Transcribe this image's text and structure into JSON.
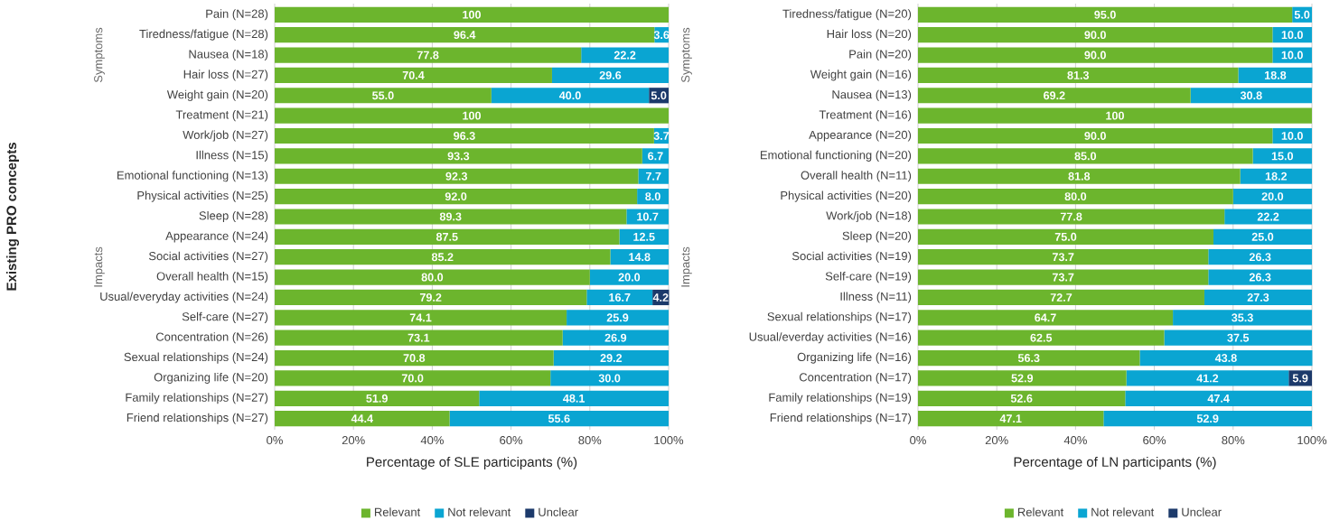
{
  "chart_data": [
    {
      "type": "bar",
      "orientation": "horizontal",
      "stacked": true,
      "xlabel": "Percentage of SLE participants (%)",
      "ylabel": "Existing PRO concepts",
      "annotations": [
        "Symptoms",
        "Impacts"
      ],
      "categories": [
        "Pain (N=28)",
        "Tiredness/fatigue (N=28)",
        "Nausea (N=18)",
        "Hair loss (N=27)",
        "Weight gain (N=20)",
        "Treatment (N=21)",
        "Work/job (N=27)",
        "Illness (N=15)",
        "Emotional functioning (N=13)",
        "Physical activities (N=25)",
        "Sleep (N=28)",
        "Appearance (N=24)",
        "Social activities (N=27)",
        "Overall health (N=15)",
        "Usual/everyday activities (N=24)",
        "Self-care (N=27)",
        "Concentration (N=26)",
        "Sexual relationships (N=24)",
        "Organizing life (N=20)",
        "Family relationships (N=27)",
        "Friend relationships (N=27)"
      ],
      "series": [
        {
          "name": "Relevant",
          "color": "#6cb52d",
          "values": [
            100,
            96.4,
            77.8,
            70.4,
            55.0,
            100,
            96.3,
            93.3,
            92.3,
            92.0,
            89.3,
            87.5,
            85.2,
            80.0,
            79.2,
            74.1,
            73.1,
            70.8,
            70.0,
            51.9,
            44.4
          ],
          "value_labels": [
            "100",
            "96.4",
            "77.8",
            "70.4",
            "55.0",
            "100",
            "96.3",
            "93.3",
            "92.3",
            "92.0",
            "89.3",
            "87.5",
            "85.2",
            "80.0",
            "79.2",
            "74.1",
            "73.1",
            "70.8",
            "70.0",
            "51.9",
            "44.4"
          ]
        },
        {
          "name": "Not relevant",
          "color": "#0aa5d2",
          "values": [
            null,
            3.6,
            22.2,
            29.6,
            40.0,
            null,
            3.7,
            6.7,
            7.7,
            8.0,
            10.7,
            12.5,
            14.8,
            20.0,
            16.7,
            25.9,
            26.9,
            29.2,
            30.0,
            48.1,
            55.6
          ],
          "value_labels": [
            null,
            "3.6",
            "22.2",
            "29.6",
            "40.0",
            null,
            "3.7",
            "6.7",
            "7.7",
            "8.0",
            "10.7",
            "12.5",
            "14.8",
            "20.0",
            "16.7",
            "25.9",
            "26.9",
            "29.2",
            "30.0",
            "48.1",
            "55.6"
          ]
        },
        {
          "name": "Unclear",
          "color": "#1c3a6b",
          "values": [
            null,
            null,
            null,
            null,
            5.0,
            null,
            null,
            null,
            null,
            null,
            null,
            null,
            null,
            null,
            4.2,
            null,
            null,
            null,
            null,
            null,
            null
          ],
          "value_labels": [
            null,
            null,
            null,
            null,
            "5.0",
            null,
            null,
            null,
            null,
            null,
            null,
            null,
            null,
            null,
            "4.2",
            null,
            null,
            null,
            null,
            null,
            null
          ]
        }
      ],
      "xlim": [
        0,
        100
      ],
      "xticks": [
        {
          "value": 0,
          "label": "0%"
        },
        {
          "value": 20,
          "label": "20%"
        },
        {
          "value": 40,
          "label": "40%"
        },
        {
          "value": 60,
          "label": "60%"
        },
        {
          "value": 80,
          "label": "80%"
        },
        {
          "value": 100,
          "label": "100%"
        }
      ],
      "grid": "x",
      "legend": "bottom"
    },
    {
      "type": "bar",
      "orientation": "horizontal",
      "stacked": true,
      "xlabel": "Percentage of LN participants (%)",
      "annotations": [
        "Symptoms",
        "Impacts"
      ],
      "categories": [
        "Tiredness/fatigue (N=20)",
        "Hair loss (N=20)",
        "Pain (N=20)",
        "Weight gain (N=16)",
        "Nausea (N=13)",
        "Treatment (N=16)",
        "Appearance (N=20)",
        "Emotional functioning (N=20)",
        "Overall health (N=11)",
        "Physical activities (N=20)",
        "Work/job (N=18)",
        "Sleep (N=20)",
        "Social activities (N=19)",
        "Self-care (N=19)",
        "Illness (N=11)",
        "Sexual relationships (N=17)",
        "Usual/everday activities (N=16)",
        "Organizing life (N=16)",
        "Concentration (N=17)",
        "Family relationships (N=19)",
        "Friend relationships (N=17)"
      ],
      "series": [
        {
          "name": "Relevant",
          "color": "#6cb52d",
          "values": [
            95.0,
            90.0,
            90.0,
            81.3,
            69.2,
            100,
            90.0,
            85.0,
            81.8,
            80.0,
            77.8,
            75.0,
            73.7,
            73.7,
            72.7,
            64.7,
            62.5,
            56.3,
            52.9,
            52.6,
            47.1
          ],
          "value_labels": [
            "95.0",
            "90.0",
            "90.0",
            "81.3",
            "69.2",
            "100",
            "90.0",
            "85.0",
            "81.8",
            "80.0",
            "77.8",
            "75.0",
            "73.7",
            "73.7",
            "72.7",
            "64.7",
            "62.5",
            "56.3",
            "52.9",
            "52.6",
            "47.1"
          ]
        },
        {
          "name": "Not relevant",
          "color": "#0aa5d2",
          "values": [
            5.0,
            10.0,
            10.0,
            18.8,
            30.8,
            null,
            10.0,
            15.0,
            18.2,
            20.0,
            22.2,
            25.0,
            26.3,
            26.3,
            27.3,
            35.3,
            37.5,
            43.8,
            41.2,
            47.4,
            52.9
          ],
          "value_labels": [
            "5.0",
            "10.0",
            "10.0",
            "18.8",
            "30.8",
            null,
            "10.0",
            "15.0",
            "18.2",
            "20.0",
            "22.2",
            "25.0",
            "26.3",
            "26.3",
            "27.3",
            "35.3",
            "37.5",
            "43.8",
            "41.2",
            "47.4",
            "52.9"
          ]
        },
        {
          "name": "Unclear",
          "color": "#1c3a6b",
          "values": [
            null,
            null,
            null,
            null,
            null,
            null,
            null,
            null,
            null,
            null,
            null,
            null,
            null,
            null,
            null,
            null,
            null,
            null,
            5.9,
            null,
            null
          ],
          "value_labels": [
            null,
            null,
            null,
            null,
            null,
            null,
            null,
            null,
            null,
            null,
            null,
            null,
            null,
            null,
            null,
            null,
            null,
            null,
            "5.9",
            null,
            null
          ]
        }
      ],
      "xlim": [
        0,
        100
      ],
      "xticks": [
        {
          "value": 0,
          "label": "0%"
        },
        {
          "value": 20,
          "label": "20%"
        },
        {
          "value": 40,
          "label": "40%"
        },
        {
          "value": 60,
          "label": "60%"
        },
        {
          "value": 80,
          "label": "80%"
        },
        {
          "value": 100,
          "label": "100%"
        }
      ],
      "grid": "x",
      "legend": "bottom"
    }
  ]
}
